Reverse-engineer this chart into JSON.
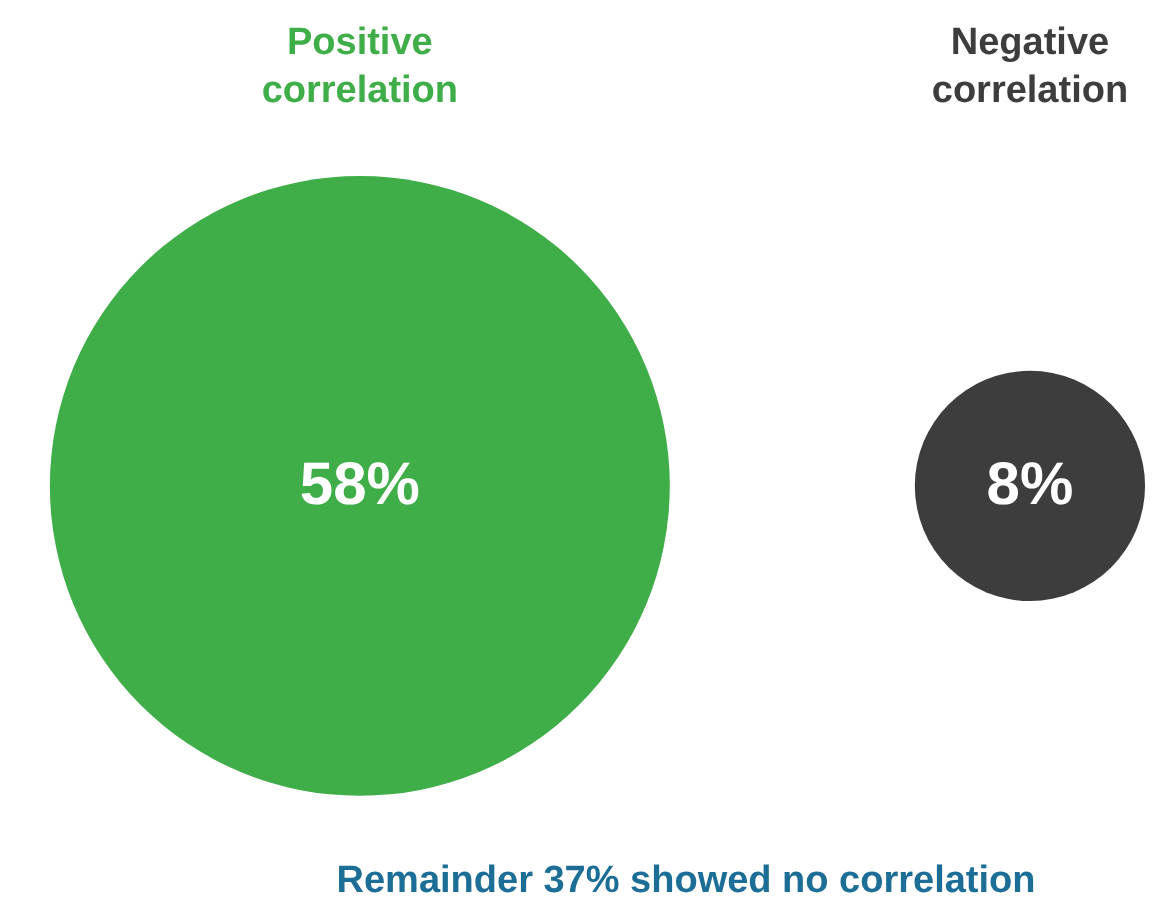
{
  "chart_data": {
    "type": "other",
    "categories": [
      "Positive correlation",
      "Negative correlation"
    ],
    "values": [
      58,
      8
    ],
    "colors": [
      "#3fae49",
      "#3d3d3d"
    ],
    "value_labels": [
      "58%",
      "8%"
    ],
    "annotations": [
      "Remainder 37% showed no correlation"
    ]
  }
}
